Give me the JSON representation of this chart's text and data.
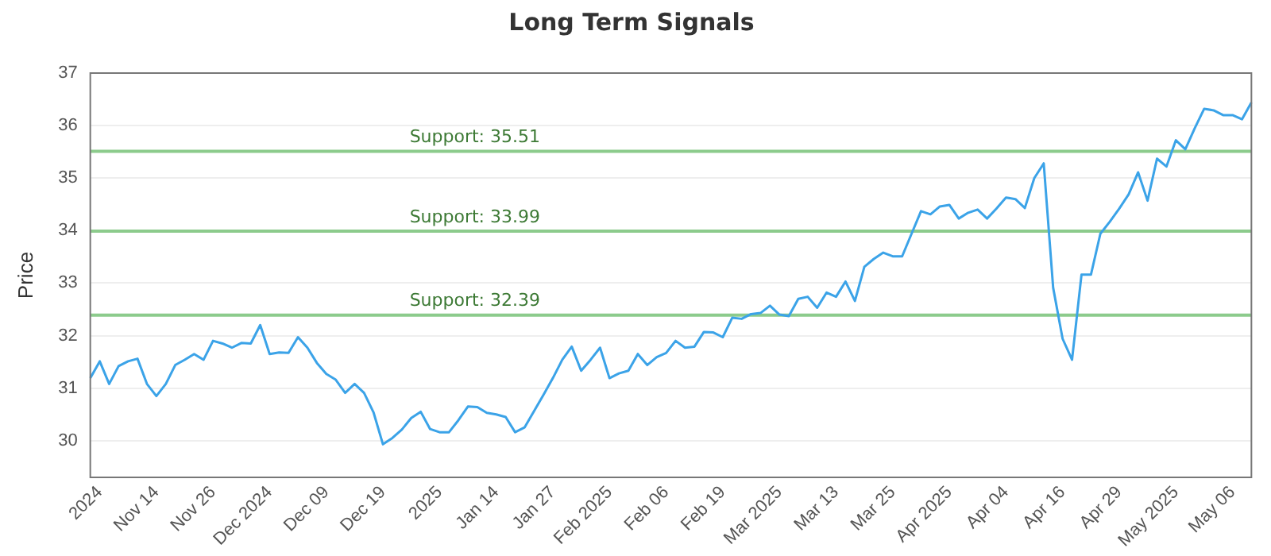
{
  "chart_data": {
    "type": "line",
    "title": "Long Term Signals",
    "ylabel": "Price",
    "categories": [
      null,
      "2024",
      null,
      null,
      null,
      null,
      null,
      "Nov 14",
      null,
      null,
      null,
      null,
      null,
      "Nov 26",
      null,
      null,
      null,
      null,
      null,
      "Dec 2024",
      null,
      null,
      null,
      null,
      null,
      "Dec 09",
      null,
      null,
      null,
      null,
      null,
      "Dec 19",
      null,
      null,
      null,
      null,
      null,
      "2025",
      null,
      null,
      null,
      null,
      null,
      "Jan 14",
      null,
      null,
      null,
      null,
      null,
      "Jan 27",
      null,
      null,
      null,
      null,
      null,
      "Feb 2025",
      null,
      null,
      null,
      null,
      null,
      "Feb 06",
      null,
      null,
      null,
      null,
      null,
      "Feb 19",
      null,
      null,
      null,
      null,
      null,
      "Mar 2025",
      null,
      null,
      null,
      null,
      null,
      "Mar 13",
      null,
      null,
      null,
      null,
      null,
      "Mar 25",
      null,
      null,
      null,
      null,
      null,
      "Apr 2025",
      null,
      null,
      null,
      null,
      null,
      "Apr 04",
      null,
      null,
      null,
      null,
      null,
      "Apr 16",
      null,
      null,
      null,
      null,
      null,
      "Apr 29",
      null,
      null,
      null,
      null,
      null,
      "May 2025",
      null,
      null,
      null,
      null,
      null,
      "May 06",
      null,
      null
    ],
    "series": [
      {
        "color": "#3ba3e8",
        "values": [
          31.19,
          31.51,
          31.08,
          31.42,
          31.51,
          31.56,
          31.08,
          30.85,
          31.08,
          31.44,
          31.54,
          31.65,
          31.54,
          31.9,
          31.85,
          31.77,
          31.86,
          31.85,
          32.2,
          31.65,
          31.68,
          31.67,
          31.97,
          31.77,
          31.48,
          31.27,
          31.16,
          30.91,
          31.08,
          30.91,
          30.54,
          29.93,
          30.05,
          30.21,
          30.43,
          30.55,
          30.22,
          30.16,
          30.16,
          30.39,
          30.65,
          30.64,
          30.53,
          30.5,
          30.45,
          30.16,
          30.25,
          30.56,
          30.87,
          31.19,
          31.54,
          31.79,
          31.33,
          31.54,
          31.77,
          31.19,
          31.28,
          31.33,
          31.65,
          31.44,
          31.59,
          31.67,
          31.9,
          31.77,
          31.79,
          32.07,
          32.06,
          31.97,
          32.34,
          32.32,
          32.41,
          32.43,
          32.57,
          32.4,
          32.37,
          32.7,
          32.74,
          32.53,
          32.82,
          32.74,
          33.03,
          32.66,
          33.31,
          33.46,
          33.58,
          33.51,
          33.51,
          33.94,
          34.37,
          34.31,
          34.46,
          34.49,
          34.23,
          34.34,
          34.4,
          34.23,
          34.42,
          34.63,
          34.6,
          34.43,
          35.0,
          35.28,
          32.91,
          31.94,
          31.54,
          33.16,
          33.16,
          33.94,
          34.17,
          34.42,
          34.69,
          35.11,
          34.57,
          35.37,
          35.22,
          35.72,
          35.55,
          35.95,
          36.32,
          36.29,
          36.2,
          36.2,
          36.12,
          36.44
        ]
      }
    ],
    "ylim": [
      29.3,
      37
    ],
    "yticks": [
      30,
      31,
      32,
      33,
      34,
      35,
      36,
      37
    ],
    "grid": "y",
    "marker": "none",
    "line_style": "solid",
    "ref_lines": [
      {
        "axis": "y",
        "value": 35.51,
        "label": "Support: 35.51",
        "color": "#8ccb8c"
      },
      {
        "axis": "y",
        "value": 33.99,
        "label": "Support: 33.99",
        "color": "#8ccb8c"
      },
      {
        "axis": "y",
        "value": 32.39,
        "label": "Support: 32.39",
        "color": "#8ccb8c"
      }
    ]
  }
}
